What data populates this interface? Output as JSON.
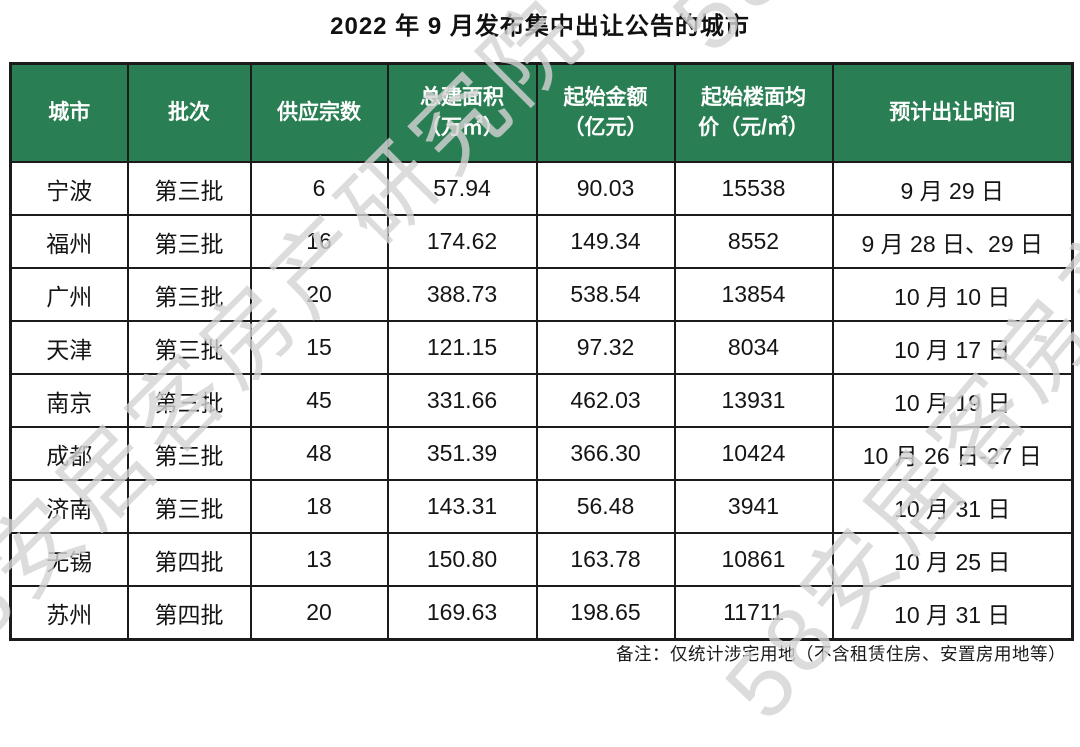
{
  "title": "2022 年 9 月发布集中出让公告的城市",
  "note": "备注：仅统计涉宅用地（不含租赁住房、安置房用地等）",
  "watermark": {
    "text": "58安居客房产研究院",
    "color": "#d4d4d4"
  },
  "theme": {
    "header_bg": "#2a7e54",
    "header_text": "#ffffff",
    "border": "#1b1b1b"
  },
  "chart_data": {
    "type": "table",
    "title": "2022 年 9 月发布集中出让公告的城市",
    "columns": [
      "城市",
      "批次",
      "供应宗数",
      "总建面积\n（万㎡）",
      "起始金额\n（亿元）",
      "起始楼面均\n价（元/㎡）",
      "预计出让时间"
    ],
    "column_keys": [
      "city",
      "batch",
      "plot-count",
      "building-area",
      "start-amount",
      "floor-price",
      "transfer-date"
    ],
    "rows": [
      [
        "宁波",
        "第三批",
        "6",
        "57.94",
        "90.03",
        "15538",
        "9 月 29 日"
      ],
      [
        "福州",
        "第三批",
        "16",
        "174.62",
        "149.34",
        "8552",
        "9 月 28 日、29 日"
      ],
      [
        "广州",
        "第三批",
        "20",
        "388.73",
        "538.54",
        "13854",
        "10 月 10 日"
      ],
      [
        "天津",
        "第三批",
        "15",
        "121.15",
        "97.32",
        "8034",
        "10 月 17 日"
      ],
      [
        "南京",
        "第三批",
        "45",
        "331.66",
        "462.03",
        "13931",
        "10 月 19 日"
      ],
      [
        "成都",
        "第三批",
        "48",
        "351.39",
        "366.30",
        "10424",
        "10 月 26 日-27 日"
      ],
      [
        "济南",
        "第三批",
        "18",
        "143.31",
        "56.48",
        "3941",
        "10 月 31 日"
      ],
      [
        "无锡",
        "第四批",
        "13",
        "150.80",
        "163.78",
        "10861",
        "10 月 25 日"
      ],
      [
        "苏州",
        "第四批",
        "20",
        "169.63",
        "198.65",
        "11711",
        "10 月 31 日"
      ]
    ]
  }
}
